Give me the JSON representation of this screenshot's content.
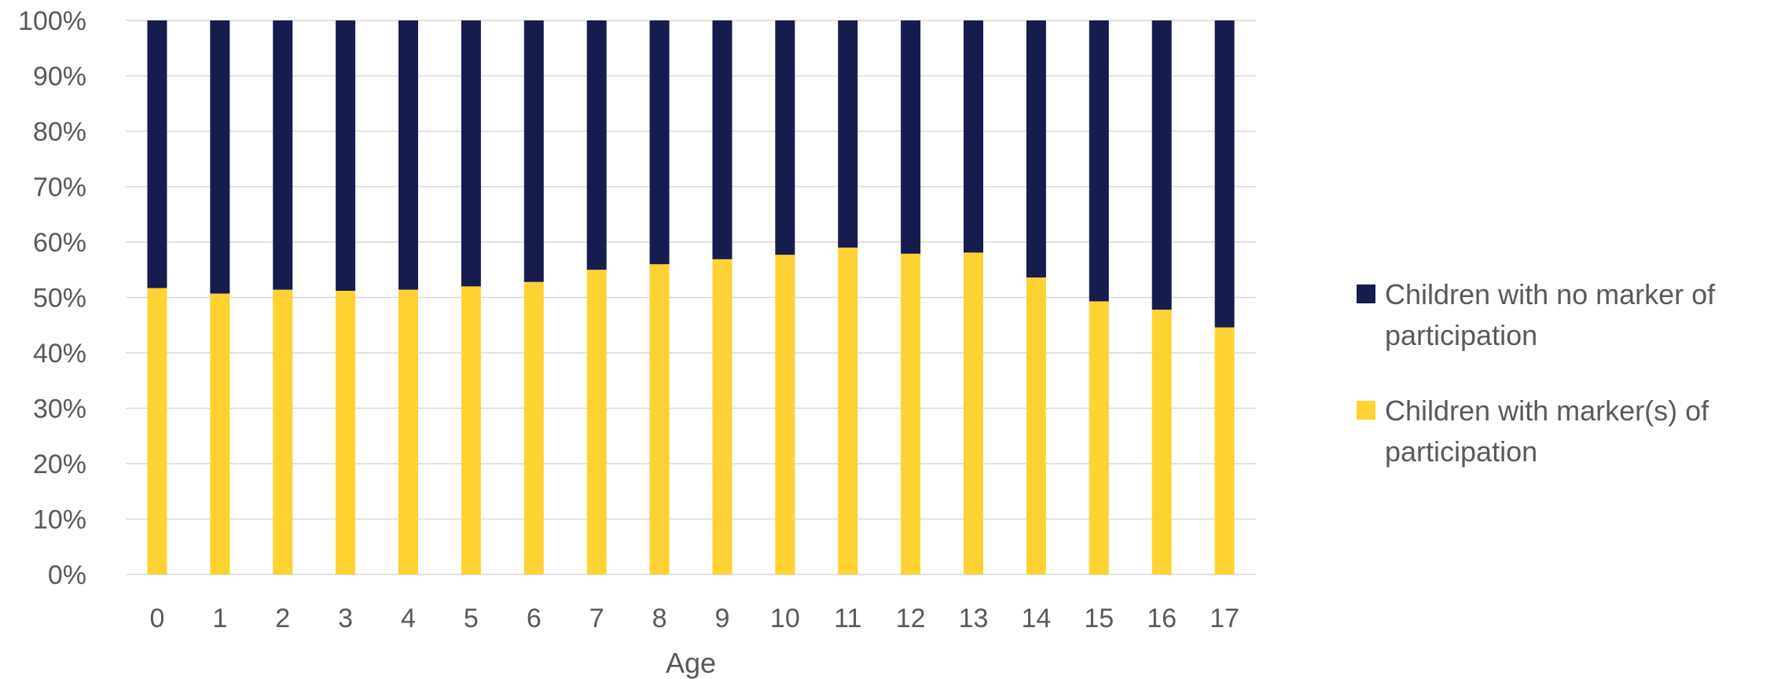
{
  "chart_data": {
    "type": "bar",
    "stacked": true,
    "percent_stacked": true,
    "title": "",
    "xlabel": "Age",
    "ylabel": "",
    "categories": [
      "0",
      "1",
      "2",
      "3",
      "4",
      "5",
      "6",
      "7",
      "8",
      "9",
      "10",
      "11",
      "12",
      "13",
      "14",
      "15",
      "16",
      "17"
    ],
    "series": [
      {
        "name": "Children with marker(s) of participation",
        "color": "#FDD232",
        "values": [
          51.7,
          50.7,
          51.4,
          51.2,
          51.4,
          52.0,
          52.8,
          55.0,
          56.0,
          56.9,
          57.7,
          59.0,
          57.9,
          58.1,
          53.6,
          49.3,
          47.8,
          44.6
        ]
      },
      {
        "name": "Children with no marker of participation",
        "color": "#171C4F",
        "values": [
          48.3,
          49.3,
          48.6,
          48.8,
          48.6,
          48.0,
          47.2,
          45.0,
          44.0,
          43.1,
          42.3,
          41.0,
          42.1,
          41.9,
          46.4,
          50.7,
          52.2,
          55.4
        ]
      }
    ],
    "ylim": [
      0,
      100
    ],
    "yticks": [
      "0%",
      "10%",
      "20%",
      "30%",
      "40%",
      "50%",
      "60%",
      "70%",
      "80%",
      "90%",
      "100%"
    ],
    "grid": true,
    "legend": {
      "position": "right",
      "entries": [
        {
          "lines": [
            "Children with no marker of",
            "participation"
          ],
          "color": "#171C4F"
        },
        {
          "lines": [
            "Children with marker(s) of",
            "participation"
          ],
          "color": "#FDD232"
        }
      ]
    }
  }
}
